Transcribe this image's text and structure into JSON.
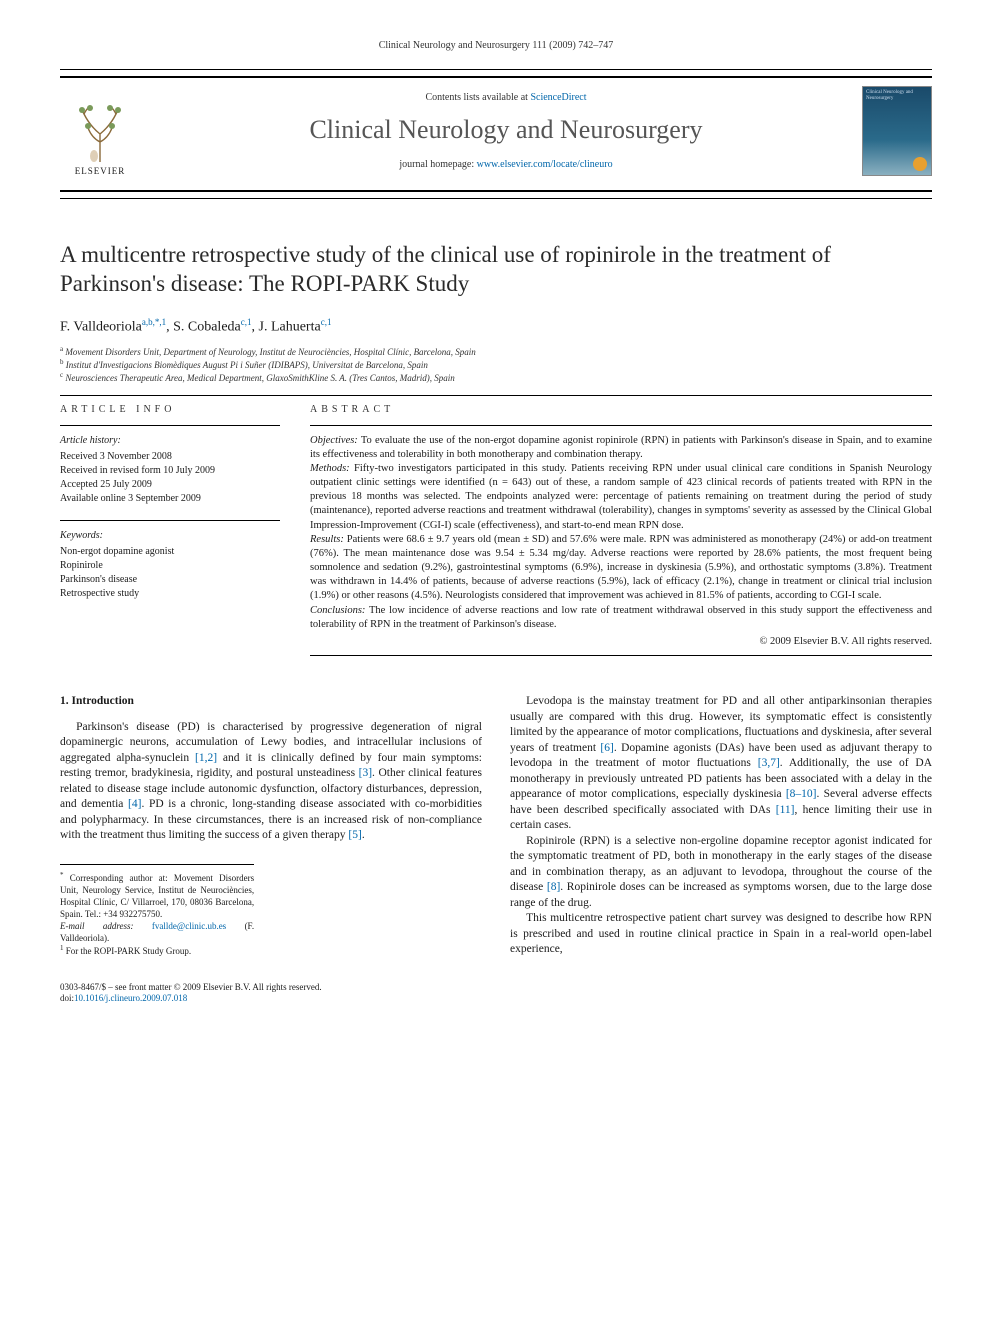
{
  "running_head": "Clinical Neurology and Neurosurgery 111 (2009) 742–747",
  "masthead": {
    "contents_prefix": "Contents lists available at ",
    "contents_link": "ScienceDirect",
    "journal_name": "Clinical Neurology and Neurosurgery",
    "homepage_prefix": "journal homepage: ",
    "homepage_link": "www.elsevier.com/locate/clineuro",
    "publisher": "ELSEVIER",
    "cover_title": "Clinical Neurology and Neurosurgery"
  },
  "article": {
    "title": "A multicentre retrospective study of the clinical use of ropinirole in the treatment of Parkinson's disease: The ROPI-PARK Study",
    "authors_html": "F. Valldeoriola<sup class='sup'>a,b,*,1</sup>, S. Cobaleda<sup class='sup'>c,1</sup>, J. Lahuerta<sup class='sup'>c,1</sup>",
    "affiliations": [
      {
        "mark": "a",
        "text": "Movement Disorders Unit, Department of Neurology, Institut de Neurociències, Hospital Clínic, Barcelona, Spain"
      },
      {
        "mark": "b",
        "text": "Institut d'Investigacions Biomèdiques August Pi i Suñer (IDIBAPS), Universitat de Barcelona, Spain"
      },
      {
        "mark": "c",
        "text": "Neurosciences Therapeutic Area, Medical Department, GlaxoSmithKline S. A. (Tres Cantos, Madrid), Spain"
      }
    ]
  },
  "article_info": {
    "heading": "article info",
    "history_label": "Article history:",
    "history": [
      "Received 3 November 2008",
      "Received in revised form 10 July 2009",
      "Accepted 25 July 2009",
      "Available online 3 September 2009"
    ],
    "keywords_label": "Keywords:",
    "keywords": [
      "Non-ergot dopamine agonist",
      "Ropinirole",
      "Parkinson's disease",
      "Retrospective study"
    ]
  },
  "abstract": {
    "heading": "abstract",
    "sections": {
      "Objectives": "To evaluate the use of the non-ergot dopamine agonist ropinirole (RPN) in patients with Parkinson's disease in Spain, and to examine its effectiveness and tolerability in both monotherapy and combination therapy.",
      "Methods": "Fifty-two investigators participated in this study. Patients receiving RPN under usual clinical care conditions in Spanish Neurology outpatient clinic settings were identified (n = 643) out of these, a random sample of 423 clinical records of patients treated with RPN in the previous 18 months was selected. The endpoints analyzed were: percentage of patients remaining on treatment during the period of study (maintenance), reported adverse reactions and treatment withdrawal (tolerability), changes in symptoms' severity as assessed by the Clinical Global Impression-Improvement (CGI-I) scale (effectiveness), and start-to-end mean RPN dose.",
      "Results": "Patients were 68.6 ± 9.7 years old (mean ± SD) and 57.6% were male. RPN was administered as monotherapy (24%) or add-on treatment (76%). The mean maintenance dose was 9.54 ± 5.34 mg/day. Adverse reactions were reported by 28.6% patients, the most frequent being somnolence and sedation (9.2%), gastrointestinal symptoms (6.9%), increase in dyskinesia (5.9%), and orthostatic symptoms (3.8%). Treatment was withdrawn in 14.4% of patients, because of adverse reactions (5.9%), lack of efficacy (2.1%), change in treatment or clinical trial inclusion (1.9%) or other reasons (4.5%). Neurologists considered that improvement was achieved in 81.5% of patients, according to CGI-I scale.",
      "Conclusions": "The low incidence of adverse reactions and low rate of treatment withdrawal observed in this study support the effectiveness and tolerability of RPN in the treatment of Parkinson's disease."
    },
    "copyright": "© 2009 Elsevier B.V. All rights reserved."
  },
  "body": {
    "section_number": "1.",
    "section_title": "Introduction",
    "col1_p1_a": "Parkinson's disease (PD) is characterised by progressive degeneration of nigral dopaminergic neurons, accumulation of Lewy bodies, and intracellular inclusions of aggregated alpha-synuclein ",
    "col1_p1_ref1": "[1,2]",
    "col1_p1_b": " and it is clinically defined by four main symptoms: resting tremor, bradykinesia, rigidity, and postural unsteadiness ",
    "col1_p1_ref2": "[3]",
    "col1_p1_c": ". Other clinical features related to disease stage include autonomic dysfunction, olfactory disturbances, depression, and dementia ",
    "col1_p1_ref3": "[4]",
    "col1_p1_d": ". PD is a chronic, long-standing disease associated with co-morbidities and polypharmacy. In these circumstances, there is an increased risk of non-compliance with the treatment thus limiting the success of a given therapy ",
    "col1_p1_ref4": "[5]",
    "col1_p1_e": ".",
    "col2_p1_a": "Levodopa is the mainstay treatment for PD and all other antiparkinsonian therapies usually are compared with this drug. However, its symptomatic effect is consistently limited by the appearance of motor complications, fluctuations and dyskinesia, after several years of treatment ",
    "col2_p1_ref1": "[6]",
    "col2_p1_b": ". Dopamine agonists (DAs) have been used as adjuvant therapy to levodopa in the treatment of motor fluctuations ",
    "col2_p1_ref2": "[3,7]",
    "col2_p1_c": ". Additionally, the use of DA monotherapy in previously untreated PD patients has been associated with a delay in the appearance of motor complications, especially dyskinesia ",
    "col2_p1_ref3": "[8–10]",
    "col2_p1_d": ". Several adverse effects have been described specifically associated with DAs ",
    "col2_p1_ref4": "[11]",
    "col2_p1_e": ", hence limiting their use in certain cases.",
    "col2_p2_a": "Ropinirole (RPN) is a selective non-ergoline dopamine receptor agonist indicated for the symptomatic treatment of PD, both in monotherapy in the early stages of the disease and in combination therapy, as an adjuvant to levodopa, throughout the course of the disease ",
    "col2_p2_ref1": "[8]",
    "col2_p2_b": ". Ropinirole doses can be increased as symptoms worsen, due to the large dose range of the drug.",
    "col2_p3": "This multicentre retrospective patient chart survey was designed to describe how RPN is prescribed and used in routine clinical practice in Spain in a real-world open-label experience,"
  },
  "footnotes": {
    "corr_mark": "*",
    "corr": "Corresponding author at: Movement Disorders Unit, Neurology Service, Institut de Neurociències, Hospital Clínic, C/ Villarroel, 170, 08036 Barcelona, Spain. Tel.: +34 932275750.",
    "email_label": "E-mail address: ",
    "email": "fvallde@clinic.ub.es",
    "email_who": " (F. Valldeoriola).",
    "note1_mark": "1",
    "note1": "For the ROPI-PARK Study Group."
  },
  "footer": {
    "line1": "0303-8467/$ – see front matter © 2009 Elsevier B.V. All rights reserved.",
    "doi_label": "doi:",
    "doi": "10.1016/j.clineuro.2009.07.018"
  },
  "colors": {
    "link": "#0066aa",
    "text": "#1a1a1a",
    "journal_name": "#555555",
    "cover_top": "#1a4a6a",
    "cover_bottom": "#8ab0c0",
    "badge": "#f0b030"
  }
}
